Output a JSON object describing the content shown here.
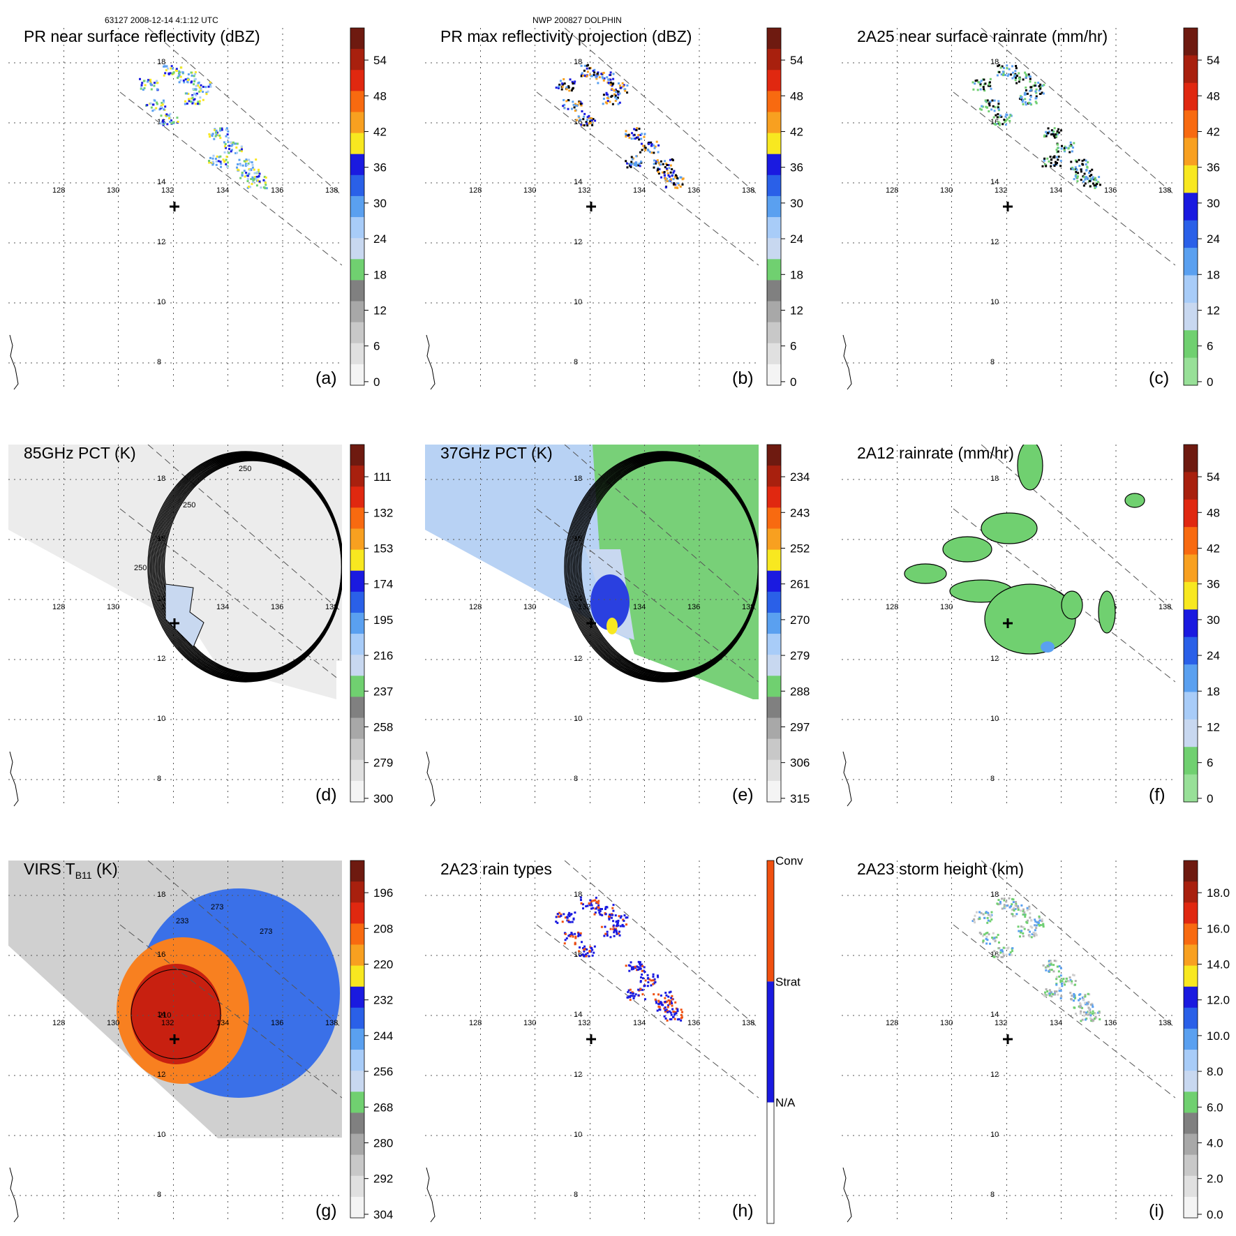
{
  "header": {
    "left": "63127 2008-12-14 4:1:12 UTC",
    "center": "NWP 200827 DOLPHIN"
  },
  "lon_ticks": [
    "128",
    "130",
    "132",
    "134",
    "136",
    "138"
  ],
  "lat_ticks": [
    "18",
    "16",
    "14",
    "12",
    "10",
    "8"
  ],
  "panels": [
    {
      "id": "a",
      "title": "PR near surface reflectivity (dBZ)",
      "label": "(a)",
      "kind": "pr_ref",
      "colorbar": [
        "54",
        "48",
        "42",
        "36",
        "30",
        "24",
        "18",
        "12",
        "6",
        "0"
      ]
    },
    {
      "id": "b",
      "title": "PR max reflectivity projection (dBZ)",
      "label": "(b)",
      "kind": "pr_max",
      "colorbar": [
        "54",
        "48",
        "42",
        "36",
        "30",
        "24",
        "18",
        "12",
        "6",
        "0"
      ]
    },
    {
      "id": "c",
      "title": "2A25 near surface rainrate (mm/hr)",
      "label": "(c)",
      "kind": "pr_rain",
      "colorbar": [
        "54",
        "48",
        "42",
        "36",
        "30",
        "24",
        "18",
        "12",
        "6",
        "0"
      ]
    },
    {
      "id": "d",
      "title": "85GHz PCT (K)",
      "label": "(d)",
      "kind": "pct85",
      "contour_labels": [
        "250",
        "250",
        "250"
      ],
      "colorbar": [
        "111",
        "132",
        "153",
        "174",
        "195",
        "216",
        "237",
        "258",
        "279",
        "300"
      ]
    },
    {
      "id": "e",
      "title": "37GHz PCT (K)",
      "label": "(e)",
      "kind": "pct37",
      "colorbar": [
        "234",
        "243",
        "252",
        "261",
        "270",
        "279",
        "288",
        "297",
        "306",
        "315"
      ]
    },
    {
      "id": "f",
      "title": "2A12 rainrate (mm/hr)",
      "label": "(f)",
      "kind": "tmi_rain",
      "colorbar": [
        "54",
        "48",
        "42",
        "36",
        "30",
        "24",
        "18",
        "12",
        "6",
        "0"
      ]
    },
    {
      "id": "g",
      "title": "VIRS T",
      "title_sub": "B11",
      "title_end": " (K)",
      "label": "(g)",
      "kind": "virs",
      "contour_labels": [
        "273",
        "273",
        "233",
        "210"
      ],
      "colorbar": [
        "196",
        "208",
        "220",
        "232",
        "244",
        "256",
        "268",
        "280",
        "292",
        "304"
      ]
    },
    {
      "id": "h",
      "title": "2A23 rain types",
      "label": "(h)",
      "kind": "rain_types",
      "rain_type_labels": [
        "Conv",
        "Strat",
        "N/A"
      ]
    },
    {
      "id": "i",
      "title": "2A23 storm height (km)",
      "label": "(i)",
      "kind": "storm_height",
      "colorbar": [
        "18.0",
        "16.0",
        "14.0",
        "12.0",
        "10.0",
        "8.0",
        "6.0",
        "4.0",
        "2.0",
        "0.0"
      ]
    }
  ],
  "colors": {
    "dbz_scale": [
      "#6e1a10",
      "#a8200e",
      "#e02810",
      "#f86a10",
      "#f8a020",
      "#f8e820",
      "#1a1ae0",
      "#2a60e8",
      "#5aa0f0",
      "#a8ccf8",
      "#c8d8f0",
      "#70d070",
      "#808080",
      "#a8a8a8",
      "#c8c8c8",
      "#e0e0e0",
      "#f4f4f4"
    ],
    "rain_scale": [
      "#6e1a10",
      "#a8200e",
      "#e02810",
      "#f86a10",
      "#f8a020",
      "#f8e820",
      "#1a1ae0",
      "#2a60e8",
      "#5aa0f0",
      "#a8ccf8",
      "#c8d8f0",
      "#70d070",
      "#98e098"
    ],
    "conv": "#f05010",
    "strat": "#1a1ae0",
    "na": "#ffffff"
  }
}
